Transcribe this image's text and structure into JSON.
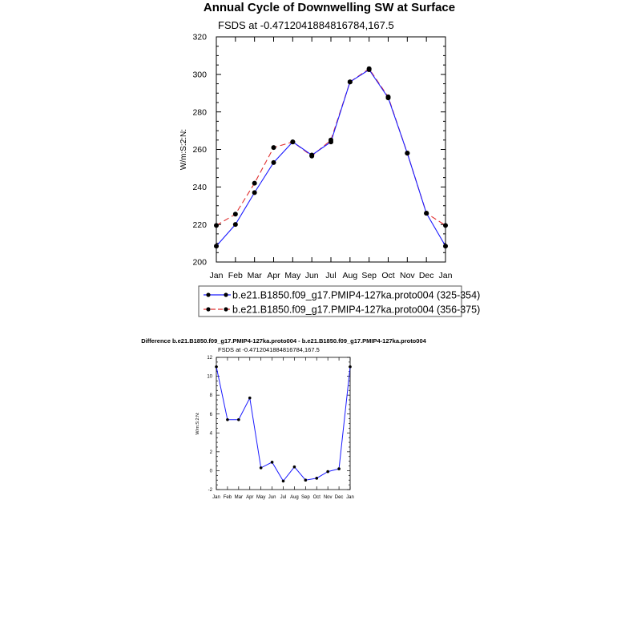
{
  "colors": {
    "series_a": "#1a1aff",
    "series_b": "#e03030",
    "markers": "#000000"
  },
  "chart_data": [
    {
      "type": "line",
      "title": "Annual Cycle of Downwelling SW at Surface",
      "subtitle": "FSDS at -0.4712041884816784,167.5",
      "ylabel": "W/m:S:2:N:",
      "xlabel": "",
      "categories": [
        "Jan",
        "Feb",
        "Mar",
        "Apr",
        "May",
        "Jun",
        "Jul",
        "Aug",
        "Sep",
        "Oct",
        "Nov",
        "Dec",
        "Jan"
      ],
      "ylim": [
        200,
        320
      ],
      "yticks": [
        200,
        220,
        240,
        260,
        280,
        300,
        320
      ],
      "grid": false,
      "legend": "bottom",
      "series": [
        {
          "name": "b.e21.B1850.f09_g17.PMIP4-127ka.proto004 (325-354)",
          "style": "solid",
          "values": [
            208.5,
            220,
            237,
            253,
            264,
            257,
            264,
            296,
            302.5,
            287.5,
            258,
            226,
            208.5
          ]
        },
        {
          "name": "b.e21.B1850.f09_g17.PMIP4-127ka.proto004 (356-375)",
          "style": "dashed",
          "values": [
            219.5,
            225.5,
            242,
            261,
            264,
            256.5,
            265,
            296,
            303,
            288,
            258,
            226,
            219.5
          ]
        }
      ]
    },
    {
      "type": "line",
      "title": "Difference b.e21.B1850.f09_g17.PMIP4-127ka.proto004 - b.e21.B1850.f09_g17.PMIP4-127ka.proto004",
      "subtitle": "FSDS at -0.4712041884816784,167.5",
      "ylabel": "W/m:S:2:N:",
      "xlabel": "",
      "categories": [
        "Jan",
        "Feb",
        "Mar",
        "Apr",
        "May",
        "Jun",
        "Jul",
        "Aug",
        "Sep",
        "Oct",
        "Nov",
        "Dec",
        "Jan"
      ],
      "ylim": [
        -2,
        12
      ],
      "yticks": [
        -2,
        0,
        2,
        4,
        6,
        8,
        10,
        12
      ],
      "grid": false,
      "series": [
        {
          "name": "",
          "values": [
            11,
            5.4,
            5.4,
            7.7,
            0.3,
            0.9,
            -1.1,
            0.4,
            -1.0,
            -0.8,
            -0.1,
            0.2,
            11
          ]
        }
      ]
    }
  ]
}
